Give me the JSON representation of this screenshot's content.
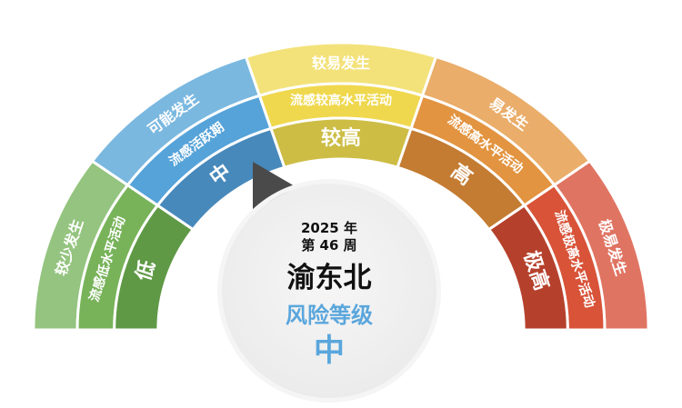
{
  "levels": [
    {
      "outer": "较少发生",
      "middle": "流感低水平活动",
      "inner": "低",
      "colors": [
        "#94c47f",
        "#78b35a",
        "#5f9945"
      ]
    },
    {
      "outer": "可能发生",
      "middle": "流感活跃期",
      "inner": "中",
      "colors": [
        "#7ab8e0",
        "#56a3d9",
        "#4889bb"
      ]
    },
    {
      "outer": "较易发生",
      "middle": "流感较高水平活动",
      "inner": "较高",
      "colors": [
        "#f3e27a",
        "#f0d84e",
        "#cdbd45"
      ]
    },
    {
      "outer": "易发生",
      "middle": "流感高水平活动",
      "inner": "高",
      "colors": [
        "#eaad6a",
        "#e39440",
        "#c47c32"
      ]
    },
    {
      "outer": "极易发生",
      "middle": "流感极高水平活动",
      "inner": "极高",
      "colors": [
        "#e07462",
        "#d85338",
        "#b5412c"
      ]
    }
  ],
  "current_level_index": 1,
  "pointer_color": "#4a4a4a",
  "center": {
    "year": "2025 年",
    "week": "第 46 周",
    "region": "渝东北",
    "risk_label": "风险等级",
    "risk_value": "中",
    "accent_color": "#5aa6dc"
  }
}
